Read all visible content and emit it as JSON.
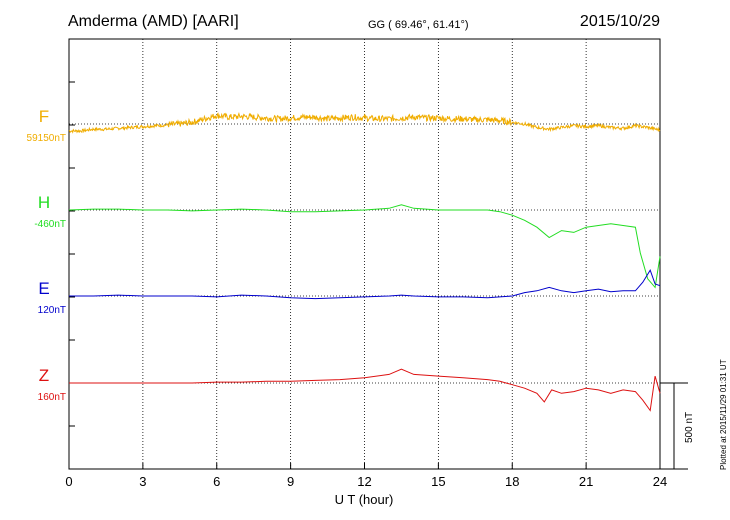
{
  "header": {
    "station": "Amderma (AMD)  [AARI]",
    "coords": "GG ( 69.46°,  61.41°)",
    "date": "2015/10/29"
  },
  "footer_note": "Plotted at 2015/11/29 01:31  UT",
  "scale_label": "500 nT",
  "chart_data": {
    "type": "line",
    "xlabel": "U T (hour)",
    "xlim": [
      0,
      24
    ],
    "x_ticks": [
      "0",
      "3",
      "6",
      "9",
      "12",
      "15",
      "18",
      "21",
      "24"
    ],
    "scale_bar_nT": 500,
    "series": [
      {
        "name": "F",
        "baseline_label": "59150nT",
        "color": "#f0ad00",
        "x": [
          0,
          0.5,
          1,
          1.5,
          2,
          2.5,
          3,
          3.5,
          4,
          4.5,
          5,
          5.5,
          6,
          6.5,
          7,
          7.5,
          8,
          8.5,
          9,
          9.5,
          10,
          10.5,
          11,
          11.5,
          12,
          12.5,
          13,
          13.5,
          14,
          14.5,
          15,
          15.5,
          16,
          16.5,
          17,
          17.5,
          18,
          18.5,
          19,
          19.5,
          20,
          20.5,
          21,
          21.5,
          22,
          22.5,
          23,
          23.5,
          24
        ],
        "y": [
          -40,
          -40,
          -30,
          -30,
          -25,
          -20,
          -15,
          -10,
          -5,
          0,
          10,
          30,
          50,
          40,
          45,
          40,
          35,
          30,
          35,
          40,
          40,
          30,
          35,
          40,
          35,
          30,
          30,
          35,
          40,
          35,
          35,
          30,
          30,
          25,
          25,
          20,
          10,
          0,
          -20,
          -30,
          -20,
          -10,
          -15,
          -10,
          -20,
          -25,
          -10,
          -20,
          -35
        ]
      },
      {
        "name": "H",
        "baseline_label": "-460nT",
        "color": "#22dd22",
        "x": [
          0,
          1,
          2,
          3,
          4,
          5,
          6,
          7,
          8,
          9,
          10,
          11,
          12,
          13,
          13.5,
          14,
          15,
          16,
          17,
          17.5,
          18,
          18.5,
          19,
          19.5,
          20,
          20.5,
          21,
          21.5,
          22,
          22.5,
          23,
          23.2,
          23.5,
          23.8,
          24
        ],
        "y": [
          0,
          5,
          5,
          0,
          0,
          -5,
          0,
          5,
          0,
          -10,
          -10,
          -5,
          0,
          10,
          30,
          10,
          0,
          0,
          0,
          -10,
          -30,
          -60,
          -100,
          -160,
          -120,
          -130,
          -100,
          -90,
          -80,
          -90,
          -100,
          -250,
          -400,
          -450,
          -270
        ]
      },
      {
        "name": "E",
        "baseline_label": "120nT",
        "color": "#0000cc",
        "x": [
          0,
          1,
          2,
          3,
          4,
          5,
          6,
          7,
          8,
          9,
          10,
          11,
          12,
          13,
          13.5,
          14,
          15,
          16,
          17,
          17.5,
          18,
          18.5,
          19,
          19.5,
          20,
          20.5,
          21,
          21.5,
          22,
          22.5,
          23,
          23.3,
          23.6,
          23.8,
          24
        ],
        "y": [
          0,
          0,
          5,
          0,
          0,
          0,
          -5,
          5,
          0,
          -10,
          -15,
          -10,
          -5,
          0,
          5,
          0,
          -5,
          -5,
          -10,
          -5,
          0,
          20,
          30,
          50,
          30,
          20,
          30,
          40,
          25,
          30,
          30,
          80,
          150,
          70,
          60
        ]
      },
      {
        "name": "Z",
        "baseline_label": "160nT",
        "color": "#dd1111",
        "x": [
          0,
          1,
          2,
          3,
          4,
          5,
          6,
          7,
          8,
          9,
          10,
          11,
          12,
          13,
          13.5,
          14,
          15,
          16,
          17,
          17.5,
          18,
          18.5,
          19,
          19.3,
          19.6,
          20,
          20.5,
          21,
          21.5,
          22,
          22.5,
          23,
          23.3,
          23.6,
          23.8,
          24
        ],
        "y": [
          0,
          0,
          0,
          0,
          0,
          0,
          5,
          5,
          10,
          10,
          15,
          20,
          30,
          50,
          80,
          50,
          40,
          30,
          20,
          10,
          -10,
          -30,
          -60,
          -110,
          -40,
          -60,
          -50,
          -30,
          -40,
          -60,
          -40,
          -50,
          -100,
          -160,
          40,
          -60
        ]
      }
    ]
  }
}
